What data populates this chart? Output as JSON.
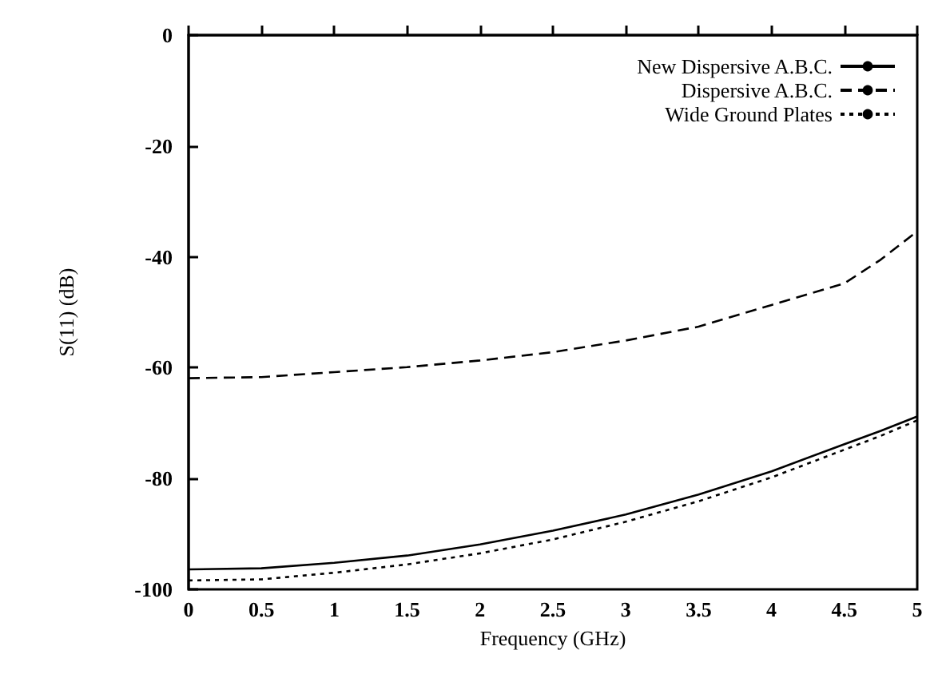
{
  "chart_data": {
    "type": "line",
    "xlabel": "Frequency (GHz)",
    "ylabel": "S(11) (dB)",
    "x": [
      0,
      0.5,
      1,
      1.5,
      2,
      2.5,
      3,
      3.5,
      4,
      4.5,
      4.75,
      5
    ],
    "series": [
      {
        "name": "New Dispersive A.B.C.",
        "color": "#000000",
        "line_style": "solid",
        "values": [
          -96.4,
          -96.2,
          -95.2,
          -93.9,
          -91.9,
          -89.4,
          -86.5,
          -82.9,
          -78.7,
          -73.8,
          -71.4,
          -68.8
        ]
      },
      {
        "name": "Dispersive A.B.C.",
        "color": "#000000",
        "line_style": "dashed",
        "values": [
          -61.9,
          -61.7,
          -60.8,
          -59.9,
          -58.7,
          -57.2,
          -55.1,
          -52.6,
          -48.7,
          -44.8,
          -40.5,
          -35.4
        ]
      },
      {
        "name": "Wide Ground Plates",
        "color": "#000000",
        "line_style": "dotted",
        "values": [
          -98.4,
          -98.2,
          -97,
          -95.5,
          -93.5,
          -91,
          -87.8,
          -84.1,
          -79.8,
          -74.8,
          -72.3,
          -69.5
        ]
      }
    ],
    "xlim": [
      0,
      5
    ],
    "xticks": [
      0,
      0.5,
      1,
      1.5,
      2,
      2.5,
      3,
      3.5,
      4,
      4.5,
      5
    ],
    "ylim": [
      -100,
      0
    ],
    "yticks": [
      -100,
      -80,
      -60,
      -40,
      -20,
      0
    ],
    "grid": false,
    "legend": "top right",
    "marker": "none"
  }
}
